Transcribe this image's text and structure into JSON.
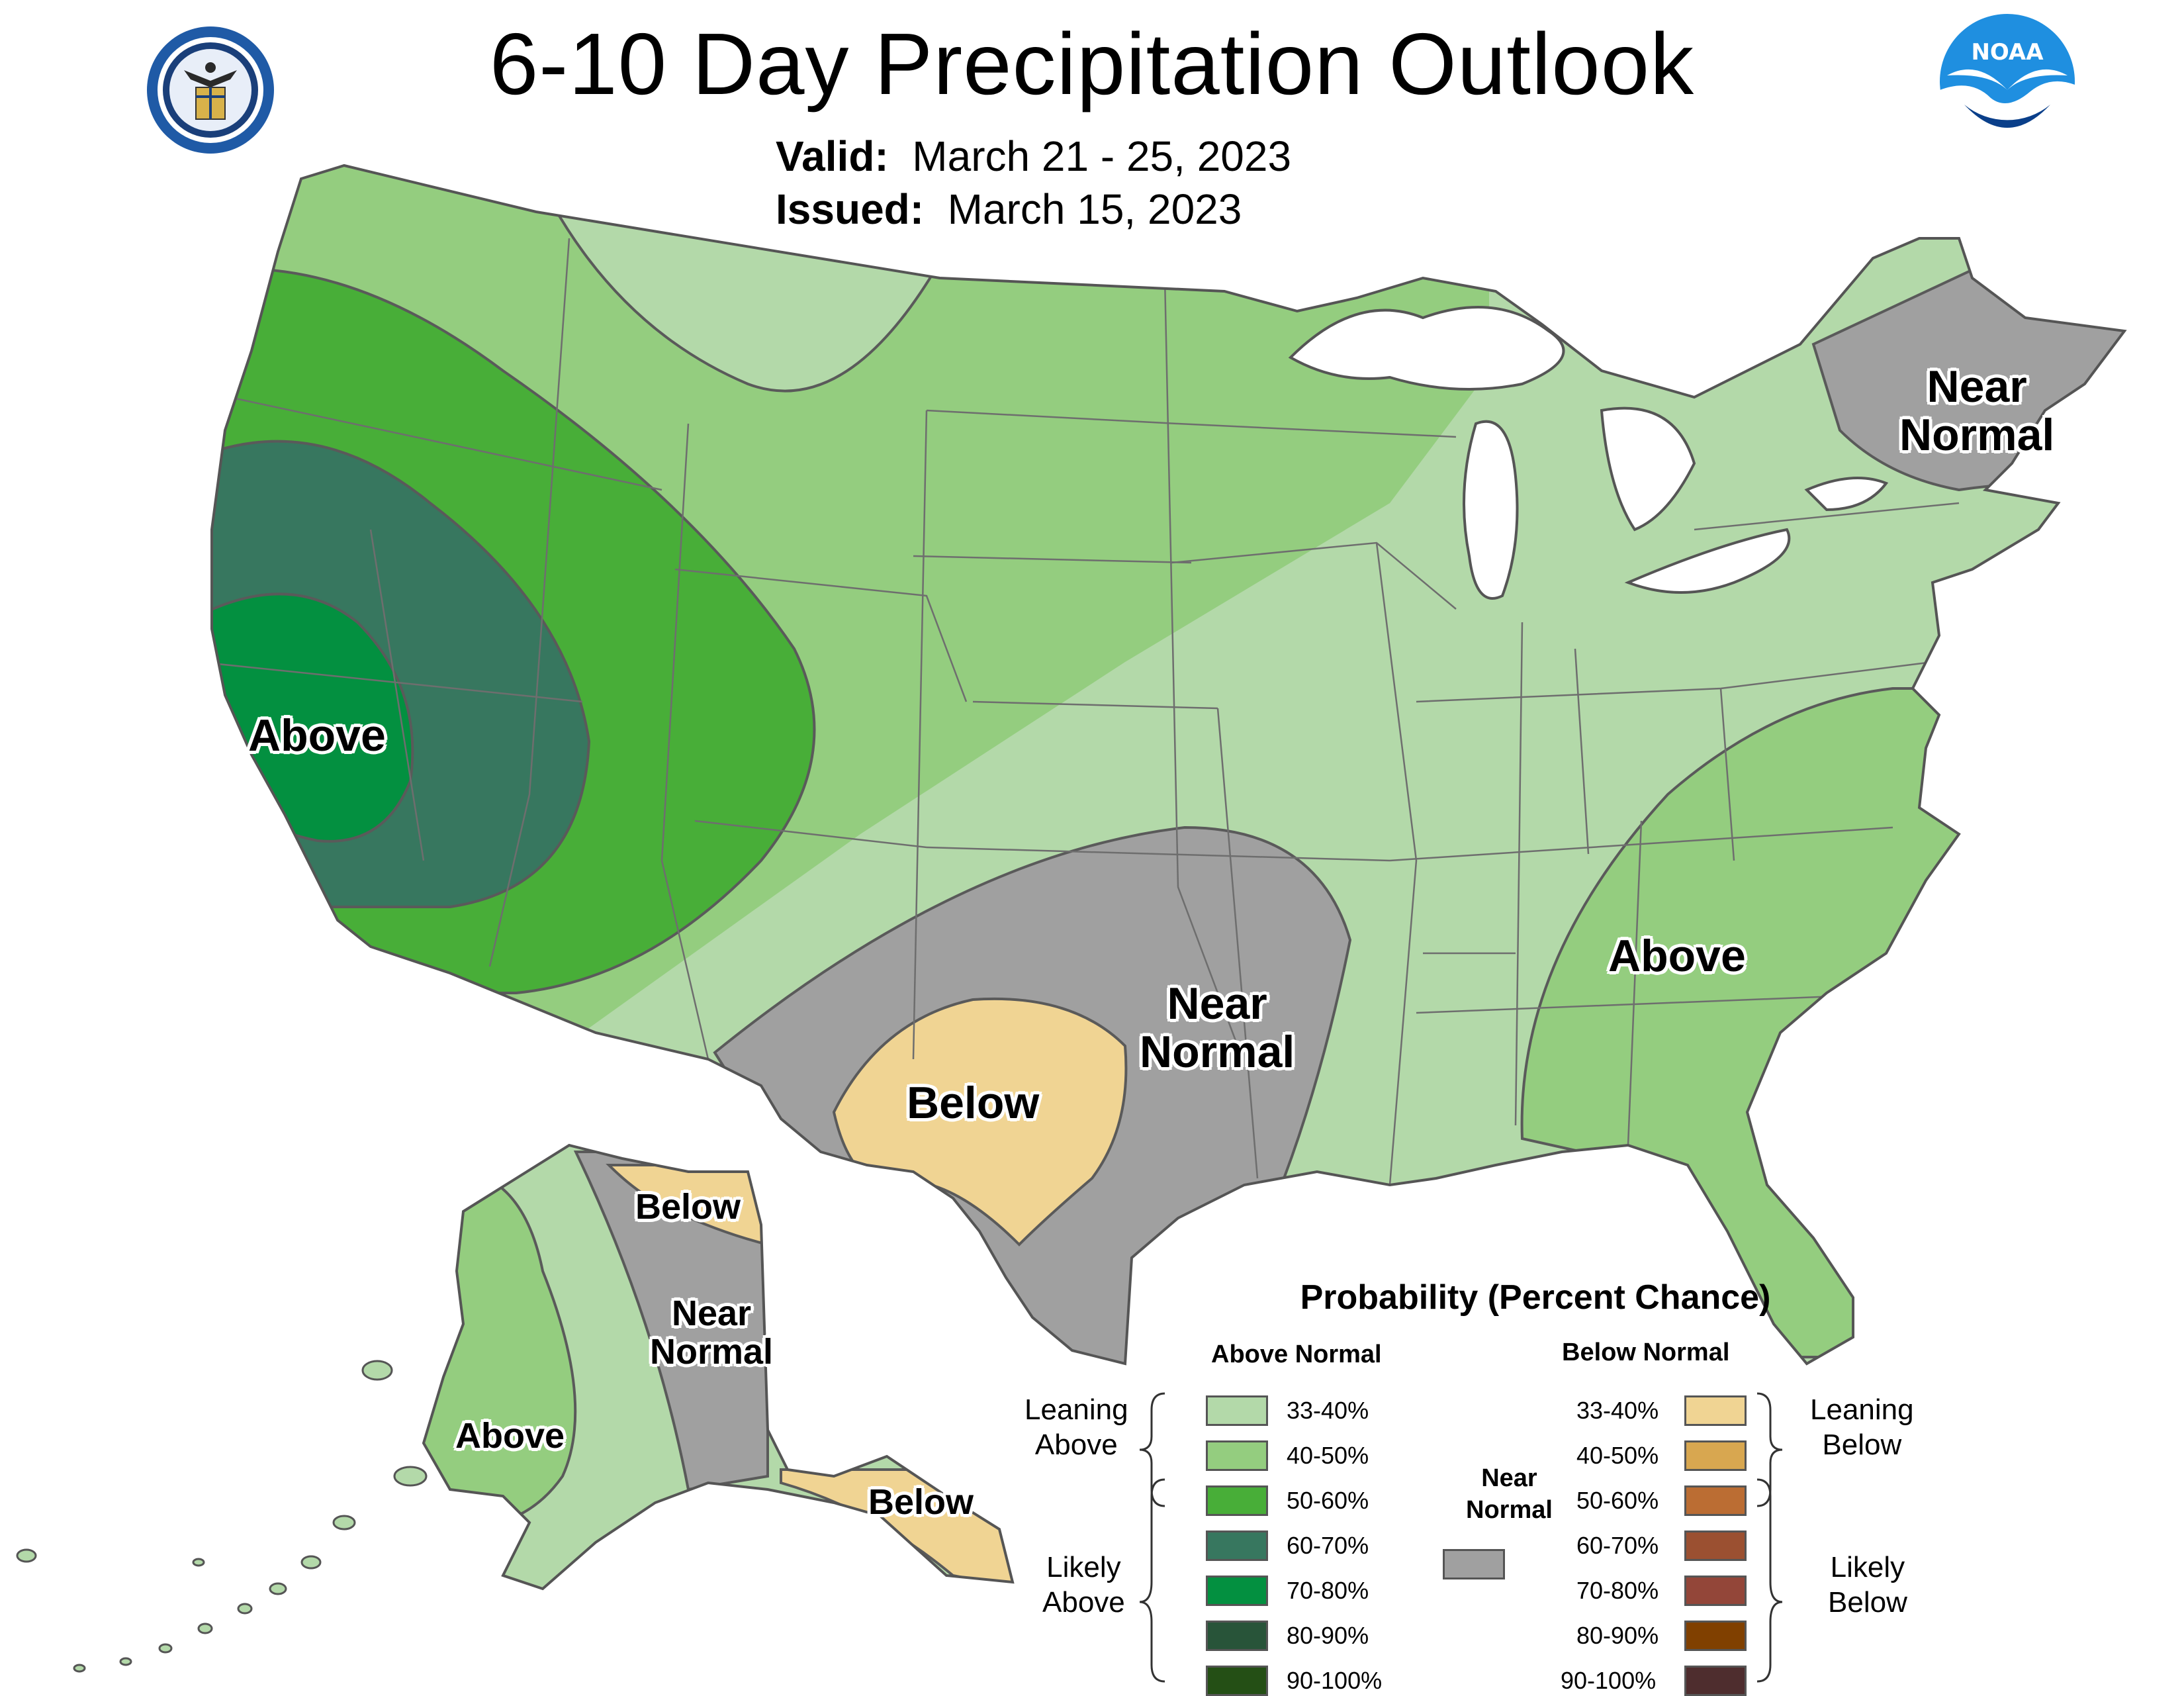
{
  "header": {
    "title": "6-10 Day Precipitation Outlook",
    "valid_label": "Valid:",
    "valid_value": "March 21 - 25, 2023",
    "issued_label": "Issued:",
    "issued_value": "March 15, 2023"
  },
  "logos": {
    "commerce_seal": "department-of-commerce-seal-icon",
    "noaa": "noaa-logo-icon",
    "noaa_text": "NOAA"
  },
  "map_labels": {
    "west_above": "Above",
    "northeast_near_1": "Near",
    "northeast_near_2": "Normal",
    "south_near_1": "Near",
    "south_near_2": "Normal",
    "texas_below": "Below",
    "southeast_above": "Above",
    "alaska_below_north": "Below",
    "alaska_near_1": "Near",
    "alaska_near_2": "Normal",
    "alaska_above": "Above",
    "alaska_below_south": "Below"
  },
  "legend": {
    "title": "Probability (Percent Chance)",
    "above_header": "Above Normal",
    "below_header": "Below Normal",
    "near_header_1": "Near",
    "near_header_2": "Normal",
    "leaning_above_1": "Leaning",
    "leaning_above_2": "Above",
    "likely_above_1": "Likely",
    "likely_above_2": "Above",
    "leaning_below_1": "Leaning",
    "leaning_below_2": "Below",
    "likely_below_1": "Likely",
    "likely_below_2": "Below",
    "above": [
      {
        "label": "33-40%",
        "color": "#b3d9a9"
      },
      {
        "label": "40-50%",
        "color": "#94cd7f"
      },
      {
        "label": "50-60%",
        "color": "#48ae38"
      },
      {
        "label": "60-70%",
        "color": "#37775f"
      },
      {
        "label": "70-80%",
        "color": "#039040"
      },
      {
        "label": "80-90%",
        "color": "#285439"
      },
      {
        "label": "90-100%",
        "color": "#244f15"
      }
    ],
    "below": [
      {
        "label": "33-40%",
        "color": "#f0d493"
      },
      {
        "label": "40-50%",
        "color": "#d8a750"
      },
      {
        "label": "50-60%",
        "color": "#bb6d33"
      },
      {
        "label": "60-70%",
        "color": "#9b5031"
      },
      {
        "label": "70-80%",
        "color": "#934639"
      },
      {
        "label": "80-90%",
        "color": "#804000"
      },
      {
        "label": "90-100%",
        "color": "#4e2d2e"
      }
    ],
    "near_color": "#a0a0a0"
  },
  "colors": {
    "above_33_40": "#b3d9a9",
    "above_40_50": "#94cd7f",
    "above_50_60": "#48ae38",
    "above_60_70": "#37775f",
    "above_70_80": "#039040",
    "below_33_40": "#f0d493",
    "near_normal": "#a0a0a0"
  }
}
